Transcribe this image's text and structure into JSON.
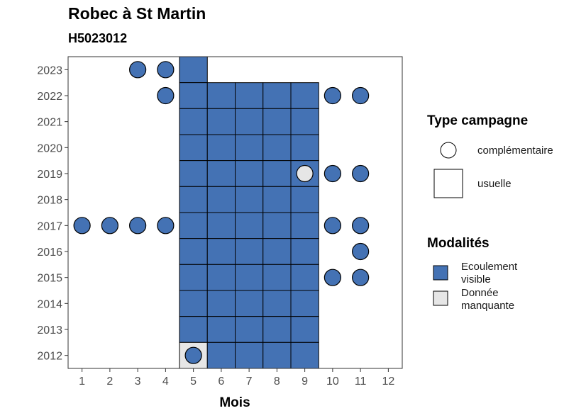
{
  "chart_data": {
    "type": "heatmap",
    "title": "Robec à St Martin",
    "subtitle": "H5023012",
    "xlabel": "Mois",
    "ylabel": "",
    "x_ticks": [
      1,
      2,
      3,
      4,
      5,
      6,
      7,
      8,
      9,
      10,
      11,
      12
    ],
    "y_ticks": [
      2012,
      2013,
      2014,
      2015,
      2016,
      2017,
      2018,
      2019,
      2020,
      2021,
      2022,
      2023
    ],
    "xlim": [
      0.5,
      12.5
    ],
    "ylim": [
      2011.5,
      2023.5
    ],
    "legend_campagne": {
      "title": "Type campagne",
      "entries": [
        {
          "key": "complementaire",
          "label": "complémentaire",
          "shape": "circle"
        },
        {
          "key": "usuelle",
          "label": "usuelle",
          "shape": "square"
        }
      ]
    },
    "legend_modalites": {
      "title": "Modalités",
      "entries": [
        {
          "key": "visible",
          "label_lines": [
            "Ecoulement",
            "visible"
          ],
          "color": "#4472b4"
        },
        {
          "key": "missing",
          "label_lines": [
            "Donnée",
            "manquante"
          ],
          "color": "#e6e6e6"
        }
      ]
    },
    "usuelle": [
      {
        "x": 5,
        "y": 2023,
        "m": "visible"
      },
      {
        "x": 5,
        "y": 2022,
        "m": "visible"
      },
      {
        "x": 6,
        "y": 2022,
        "m": "visible"
      },
      {
        "x": 7,
        "y": 2022,
        "m": "visible"
      },
      {
        "x": 8,
        "y": 2022,
        "m": "visible"
      },
      {
        "x": 9,
        "y": 2022,
        "m": "visible"
      },
      {
        "x": 5,
        "y": 2021,
        "m": "visible"
      },
      {
        "x": 6,
        "y": 2021,
        "m": "visible"
      },
      {
        "x": 7,
        "y": 2021,
        "m": "visible"
      },
      {
        "x": 8,
        "y": 2021,
        "m": "visible"
      },
      {
        "x": 9,
        "y": 2021,
        "m": "visible"
      },
      {
        "x": 5,
        "y": 2020,
        "m": "visible"
      },
      {
        "x": 6,
        "y": 2020,
        "m": "visible"
      },
      {
        "x": 7,
        "y": 2020,
        "m": "visible"
      },
      {
        "x": 8,
        "y": 2020,
        "m": "visible"
      },
      {
        "x": 9,
        "y": 2020,
        "m": "visible"
      },
      {
        "x": 5,
        "y": 2019,
        "m": "visible"
      },
      {
        "x": 6,
        "y": 2019,
        "m": "visible"
      },
      {
        "x": 7,
        "y": 2019,
        "m": "visible"
      },
      {
        "x": 8,
        "y": 2019,
        "m": "visible"
      },
      {
        "x": 9,
        "y": 2019,
        "m": "visible"
      },
      {
        "x": 5,
        "y": 2018,
        "m": "visible"
      },
      {
        "x": 6,
        "y": 2018,
        "m": "visible"
      },
      {
        "x": 7,
        "y": 2018,
        "m": "visible"
      },
      {
        "x": 8,
        "y": 2018,
        "m": "visible"
      },
      {
        "x": 9,
        "y": 2018,
        "m": "visible"
      },
      {
        "x": 5,
        "y": 2017,
        "m": "visible"
      },
      {
        "x": 6,
        "y": 2017,
        "m": "visible"
      },
      {
        "x": 7,
        "y": 2017,
        "m": "visible"
      },
      {
        "x": 8,
        "y": 2017,
        "m": "visible"
      },
      {
        "x": 9,
        "y": 2017,
        "m": "visible"
      },
      {
        "x": 5,
        "y": 2016,
        "m": "visible"
      },
      {
        "x": 6,
        "y": 2016,
        "m": "visible"
      },
      {
        "x": 7,
        "y": 2016,
        "m": "visible"
      },
      {
        "x": 8,
        "y": 2016,
        "m": "visible"
      },
      {
        "x": 9,
        "y": 2016,
        "m": "visible"
      },
      {
        "x": 5,
        "y": 2015,
        "m": "visible"
      },
      {
        "x": 6,
        "y": 2015,
        "m": "visible"
      },
      {
        "x": 7,
        "y": 2015,
        "m": "visible"
      },
      {
        "x": 8,
        "y": 2015,
        "m": "visible"
      },
      {
        "x": 9,
        "y": 2015,
        "m": "visible"
      },
      {
        "x": 5,
        "y": 2014,
        "m": "visible"
      },
      {
        "x": 6,
        "y": 2014,
        "m": "visible"
      },
      {
        "x": 7,
        "y": 2014,
        "m": "visible"
      },
      {
        "x": 8,
        "y": 2014,
        "m": "visible"
      },
      {
        "x": 9,
        "y": 2014,
        "m": "visible"
      },
      {
        "x": 5,
        "y": 2013,
        "m": "visible"
      },
      {
        "x": 6,
        "y": 2013,
        "m": "visible"
      },
      {
        "x": 7,
        "y": 2013,
        "m": "visible"
      },
      {
        "x": 8,
        "y": 2013,
        "m": "visible"
      },
      {
        "x": 9,
        "y": 2013,
        "m": "visible"
      },
      {
        "x": 5,
        "y": 2012,
        "m": "missing"
      },
      {
        "x": 6,
        "y": 2012,
        "m": "visible"
      },
      {
        "x": 7,
        "y": 2012,
        "m": "visible"
      },
      {
        "x": 8,
        "y": 2012,
        "m": "visible"
      },
      {
        "x": 9,
        "y": 2012,
        "m": "visible"
      }
    ],
    "complementaire": [
      {
        "x": 3,
        "y": 2023,
        "m": "visible"
      },
      {
        "x": 4,
        "y": 2023,
        "m": "visible"
      },
      {
        "x": 4,
        "y": 2022,
        "m": "visible"
      },
      {
        "x": 10,
        "y": 2022,
        "m": "visible"
      },
      {
        "x": 11,
        "y": 2022,
        "m": "visible"
      },
      {
        "x": 9,
        "y": 2019,
        "m": "missing"
      },
      {
        "x": 10,
        "y": 2019,
        "m": "visible"
      },
      {
        "x": 11,
        "y": 2019,
        "m": "visible"
      },
      {
        "x": 1,
        "y": 2017,
        "m": "visible"
      },
      {
        "x": 2,
        "y": 2017,
        "m": "visible"
      },
      {
        "x": 3,
        "y": 2017,
        "m": "visible"
      },
      {
        "x": 4,
        "y": 2017,
        "m": "visible"
      },
      {
        "x": 10,
        "y": 2017,
        "m": "visible"
      },
      {
        "x": 11,
        "y": 2017,
        "m": "visible"
      },
      {
        "x": 11,
        "y": 2016,
        "m": "visible"
      },
      {
        "x": 10,
        "y": 2015,
        "m": "visible"
      },
      {
        "x": 11,
        "y": 2015,
        "m": "visible"
      },
      {
        "x": 5,
        "y": 2012,
        "m": "visible"
      }
    ]
  }
}
